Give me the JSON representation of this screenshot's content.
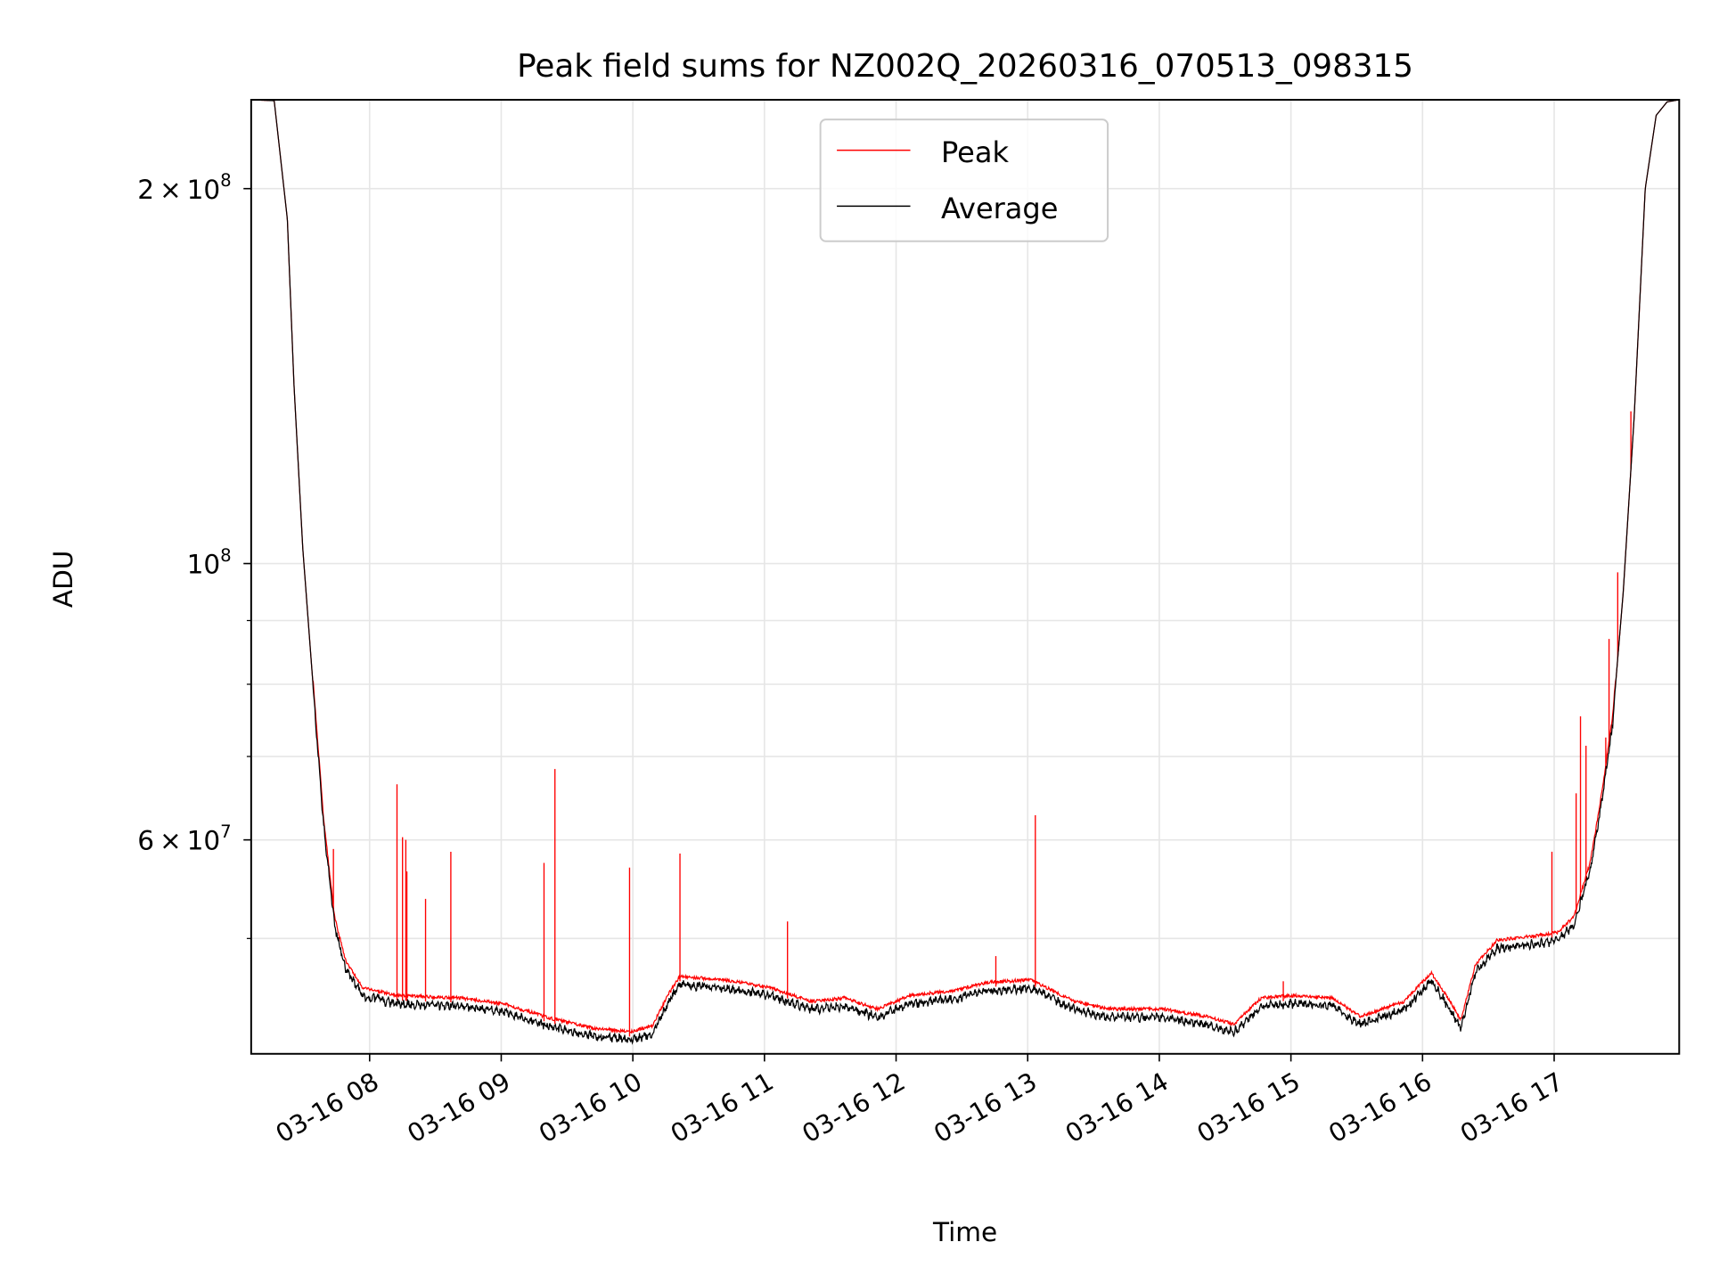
{
  "chart_data": {
    "type": "line",
    "title": "Peak field sums for NZ002Q_20260316_070513_098315",
    "xlabel": "Time",
    "ylabel": "ADU",
    "yscale": "log",
    "ylim": [
      40400000,
      235700000
    ],
    "xlim_hours": [
      7.1,
      17.95
    ],
    "grid": true,
    "legend_placement": "top-center",
    "x_ticks": [
      {
        "hour": 8,
        "label": "03-16 08"
      },
      {
        "hour": 9,
        "label": "03-16 09"
      },
      {
        "hour": 10,
        "label": "03-16 10"
      },
      {
        "hour": 11,
        "label": "03-16 11"
      },
      {
        "hour": 12,
        "label": "03-16 12"
      },
      {
        "hour": 13,
        "label": "03-16 13"
      },
      {
        "hour": 14,
        "label": "03-16 14"
      },
      {
        "hour": 15,
        "label": "03-16 15"
      },
      {
        "hour": 16,
        "label": "03-16 16"
      },
      {
        "hour": 17,
        "label": "03-16 17"
      }
    ],
    "y_major_ticks": [
      {
        "value": 200000000,
        "mant": "2",
        "exp": "8"
      },
      {
        "value": 100000000,
        "mant": "",
        "exp": "8"
      },
      {
        "value": 60000000,
        "mant": "6",
        "exp": "7"
      }
    ],
    "y_minor_ticks": [
      50000000,
      70000000,
      80000000,
      90000000
    ],
    "series": [
      {
        "name": "Peak",
        "color": "#ff0000"
      },
      {
        "name": "Average",
        "color": "#000000"
      }
    ],
    "average_profile": [
      [
        7.1,
        235700000
      ],
      [
        7.275,
        235300000
      ],
      [
        7.375,
        189000000
      ],
      [
        7.425,
        139400000
      ],
      [
        7.492,
        102900000
      ],
      [
        7.567,
        80700000
      ],
      [
        7.65,
        62000000
      ],
      [
        7.733,
        51600000
      ],
      [
        7.817,
        47600000
      ],
      [
        7.942,
        45300000
      ],
      [
        8.192,
        44600000
      ],
      [
        8.692,
        44400000
      ],
      [
        9.025,
        43900000
      ],
      [
        9.358,
        42800000
      ],
      [
        9.692,
        42000000
      ],
      [
        9.983,
        41700000
      ],
      [
        10.15,
        42200000
      ],
      [
        10.275,
        44800000
      ],
      [
        10.358,
        46200000
      ],
      [
        10.692,
        45900000
      ],
      [
        11.025,
        45300000
      ],
      [
        11.358,
        44100000
      ],
      [
        11.608,
        44400000
      ],
      [
        11.858,
        43500000
      ],
      [
        12.108,
        44600000
      ],
      [
        12.442,
        45000000
      ],
      [
        12.692,
        45700000
      ],
      [
        13.025,
        45900000
      ],
      [
        13.358,
        44100000
      ],
      [
        13.608,
        43500000
      ],
      [
        14.025,
        43500000
      ],
      [
        14.358,
        42900000
      ],
      [
        14.567,
        42300000
      ],
      [
        14.775,
        44400000
      ],
      [
        15.025,
        44600000
      ],
      [
        15.317,
        44400000
      ],
      [
        15.525,
        42900000
      ],
      [
        15.858,
        44100000
      ],
      [
        16.067,
        46500000
      ],
      [
        16.192,
        44400000
      ],
      [
        16.292,
        42600000
      ],
      [
        16.4,
        47200000
      ],
      [
        16.567,
        49400000
      ],
      [
        16.858,
        49800000
      ],
      [
        17.025,
        50100000
      ],
      [
        17.15,
        51600000
      ],
      [
        17.275,
        57100000
      ],
      [
        17.358,
        64500000
      ],
      [
        17.442,
        74400000
      ],
      [
        17.525,
        94900000
      ],
      [
        17.608,
        131200000
      ],
      [
        17.692,
        200000000
      ],
      [
        17.775,
        229000000
      ],
      [
        17.858,
        234800000
      ],
      [
        17.95,
        235700000
      ]
    ],
    "peak_spikes": [
      [
        7.725,
        59000000
      ],
      [
        8.208,
        66500000
      ],
      [
        8.25,
        60300000
      ],
      [
        8.275,
        60000000
      ],
      [
        8.283,
        56600000
      ],
      [
        8.425,
        53800000
      ],
      [
        8.617,
        58700000
      ],
      [
        9.325,
        57500000
      ],
      [
        9.408,
        68400000
      ],
      [
        9.975,
        57000000
      ],
      [
        10.358,
        58500000
      ],
      [
        11.175,
        51600000
      ],
      [
        12.758,
        48400000
      ],
      [
        13.058,
        62800000
      ],
      [
        14.942,
        46200000
      ],
      [
        16.983,
        58700000
      ],
      [
        17.167,
        65400000
      ],
      [
        17.2,
        75400000
      ],
      [
        17.242,
        71400000
      ],
      [
        17.392,
        72500000
      ],
      [
        17.417,
        87000000
      ],
      [
        17.483,
        98400000
      ],
      [
        17.583,
        132500000
      ]
    ]
  }
}
